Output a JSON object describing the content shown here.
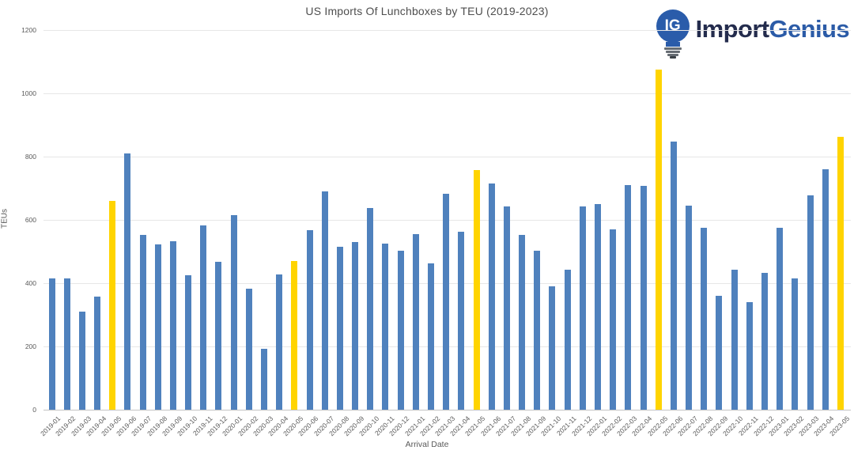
{
  "logo": {
    "icon_text": "IG",
    "brand_first": "Import",
    "brand_second": "Genius",
    "icon_color": "#2a5caa",
    "brand_first_color": "#242c4d",
    "brand_second_color": "#2b5ba7"
  },
  "chart_data": {
    "type": "bar",
    "title": "US Imports Of Lunchboxes by TEU (2019-2023)",
    "xlabel": "Arrival Date",
    "ylabel": "TEUs",
    "ylim": [
      0,
      1200
    ],
    "yticks": [
      0,
      200,
      400,
      600,
      800,
      1000,
      1200
    ],
    "grid": true,
    "legend": false,
    "bar_color": "#4f81bd",
    "highlight_color": "#ffd400",
    "highlighted_categories": [
      "2019-05",
      "2020-05",
      "2021-05",
      "2022-05",
      "2023-05"
    ],
    "categories": [
      "2019-01",
      "2019-02",
      "2019-03",
      "2019-04",
      "2019-05",
      "2019-06",
      "2019-07",
      "2019-08",
      "2019-09",
      "2019-10",
      "2019-11",
      "2019-12",
      "2020-01",
      "2020-02",
      "2020-03",
      "2020-04",
      "2020-05",
      "2020-06",
      "2020-07",
      "2020-08",
      "2020-09",
      "2020-10",
      "2020-11",
      "2020-12",
      "2021-01",
      "2021-02",
      "2021-03",
      "2021-04",
      "2021-05",
      "2021-06",
      "2021-07",
      "2021-08",
      "2021-09",
      "2021-10",
      "2021-11",
      "2021-12",
      "2022-01",
      "2022-02",
      "2022-03",
      "2022-04",
      "2022-05",
      "2022-06",
      "2022-07",
      "2022-08",
      "2022-09",
      "2022-10",
      "2022-11",
      "2022-12",
      "2023-01",
      "2023-02",
      "2023-03",
      "2023-04",
      "2023-05"
    ],
    "values": [
      415,
      415,
      310,
      358,
      660,
      810,
      553,
      523,
      533,
      425,
      583,
      467,
      615,
      382,
      192,
      427,
      470,
      567,
      690,
      516,
      529,
      637,
      525,
      503,
      555,
      463,
      683,
      563,
      758,
      715,
      642,
      553,
      503,
      389,
      442,
      643,
      650,
      570,
      710,
      707,
      1075,
      848,
      646,
      575,
      360,
      443,
      340,
      432,
      575,
      414,
      678,
      760,
      862
    ]
  }
}
